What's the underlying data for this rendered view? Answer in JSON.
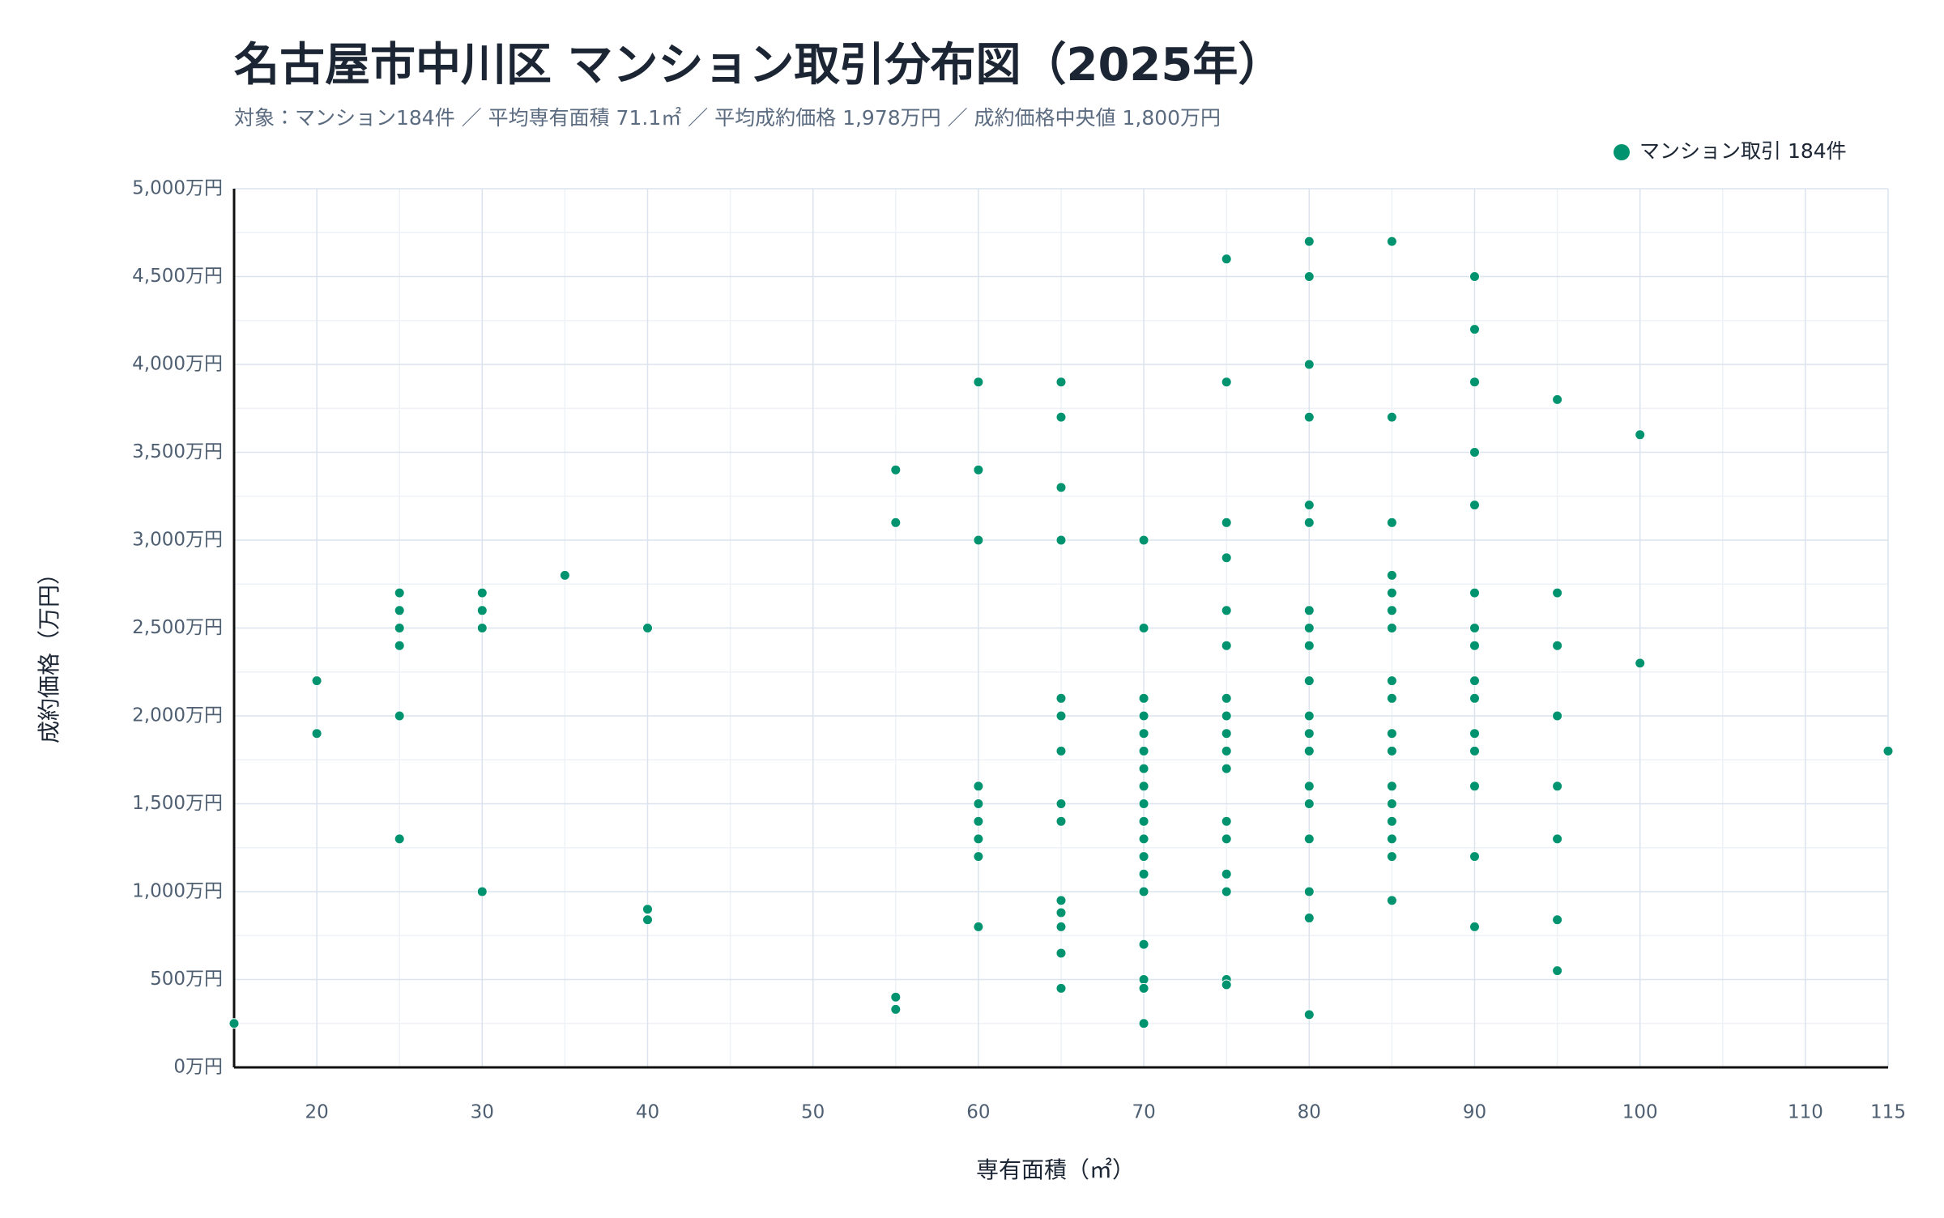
{
  "chart_data": {
    "type": "scatter",
    "title": "名古屋市中川区 マンション取引分布図（2025年）",
    "subtitle": "対象：マンション184件 ／ 平均専有面積 71.1㎡ ／ 平均成約価格 1,978万円 ／ 成約価格中央値 1,800万円",
    "x_label": "専有面積（㎡）",
    "y_label": "成約価格（万円）",
    "xlim": [
      15,
      115
    ],
    "xticks": [
      20,
      30,
      40,
      50,
      60,
      70,
      80,
      90,
      100,
      110,
      115
    ],
    "x_minor_ticks": [
      25,
      35,
      45,
      55,
      65,
      75,
      85,
      95,
      105
    ],
    "ylim": [
      0,
      5000
    ],
    "yticks": [
      {
        "value": 0,
        "label": "0万円"
      },
      {
        "value": 500,
        "label": "500万円"
      },
      {
        "value": 1000,
        "label": "1,000万円"
      },
      {
        "value": 1500,
        "label": "1,500万円"
      },
      {
        "value": 2000,
        "label": "2,000万円"
      },
      {
        "value": 2500,
        "label": "2,500万円"
      },
      {
        "value": 3000,
        "label": "3,000万円"
      },
      {
        "value": 3500,
        "label": "3,500万円"
      },
      {
        "value": 4000,
        "label": "4,000万円"
      },
      {
        "value": 4500,
        "label": "4,500万円"
      },
      {
        "value": 5000,
        "label": "5,000万円"
      }
    ],
    "y_minor_ticks": [
      250,
      750,
      1250,
      1750,
      2250,
      2750,
      3250,
      3750,
      4250,
      4750
    ],
    "grid": true,
    "legend": "top-right",
    "series": [
      {
        "name": "マンション取引 184件",
        "color": "#00936f",
        "x": [
          15,
          20,
          20,
          25,
          25,
          25,
          25,
          25,
          25,
          30,
          30,
          30,
          30,
          35,
          40,
          40,
          40,
          55,
          55,
          55,
          55,
          60,
          60,
          60,
          60,
          60,
          60,
          60,
          60,
          60,
          65,
          65,
          65,
          65,
          65,
          65,
          65,
          65,
          65,
          65,
          65,
          65,
          65,
          65,
          65,
          70,
          70,
          70,
          70,
          70,
          70,
          70,
          70,
          70,
          70,
          70,
          70,
          70,
          70,
          70,
          70,
          70,
          70,
          75,
          75,
          75,
          75,
          75,
          75,
          75,
          75,
          75,
          75,
          75,
          75,
          75,
          75,
          75,
          75,
          75,
          80,
          80,
          80,
          80,
          80,
          80,
          80,
          80,
          80,
          80,
          80,
          80,
          80,
          80,
          80,
          80,
          80,
          80,
          80,
          85,
          85,
          85,
          85,
          85,
          85,
          85,
          85,
          85,
          85,
          85,
          85,
          85,
          85,
          85,
          85,
          85,
          90,
          90,
          90,
          90,
          90,
          90,
          90,
          90,
          90,
          90,
          90,
          90,
          90,
          90,
          90,
          95,
          95,
          95,
          95,
          95,
          95,
          95,
          95,
          100,
          100,
          115
        ],
        "values": [
          250,
          2200,
          1900,
          2700,
          2600,
          2500,
          2400,
          2000,
          1300,
          2700,
          2600,
          2500,
          1000,
          2800,
          2500,
          900,
          840,
          3400,
          3100,
          400,
          330,
          3900,
          3400,
          3000,
          1600,
          1500,
          1400,
          1300,
          1200,
          800,
          650,
          3900,
          3700,
          3300,
          3000,
          2100,
          2000,
          1800,
          1500,
          1400,
          950,
          880,
          800,
          650,
          450,
          3000,
          2500,
          2100,
          2000,
          1900,
          1800,
          1700,
          1600,
          1500,
          1400,
          1300,
          1200,
          1100,
          1000,
          700,
          500,
          450,
          250,
          4600,
          3900,
          3100,
          2900,
          2600,
          2400,
          2100,
          2000,
          1900,
          1800,
          1700,
          1400,
          1300,
          1100,
          1000,
          500,
          470,
          4700,
          4500,
          4000,
          3700,
          3200,
          3100,
          2600,
          2500,
          2400,
          2200,
          2000,
          1900,
          1800,
          1600,
          1500,
          1300,
          1000,
          850,
          300,
          4700,
          3700,
          3100,
          2800,
          2700,
          2600,
          2500,
          2200,
          2100,
          1900,
          1800,
          1600,
          1500,
          1400,
          1300,
          1200,
          950,
          4500,
          4200,
          3900,
          3500,
          3200,
          2700,
          2500,
          2400,
          2200,
          2100,
          1900,
          1800,
          1600,
          1200,
          800,
          3800,
          2700,
          2400,
          2000,
          1600,
          1300,
          840,
          550,
          3600,
          2300,
          1800
        ]
      }
    ]
  }
}
